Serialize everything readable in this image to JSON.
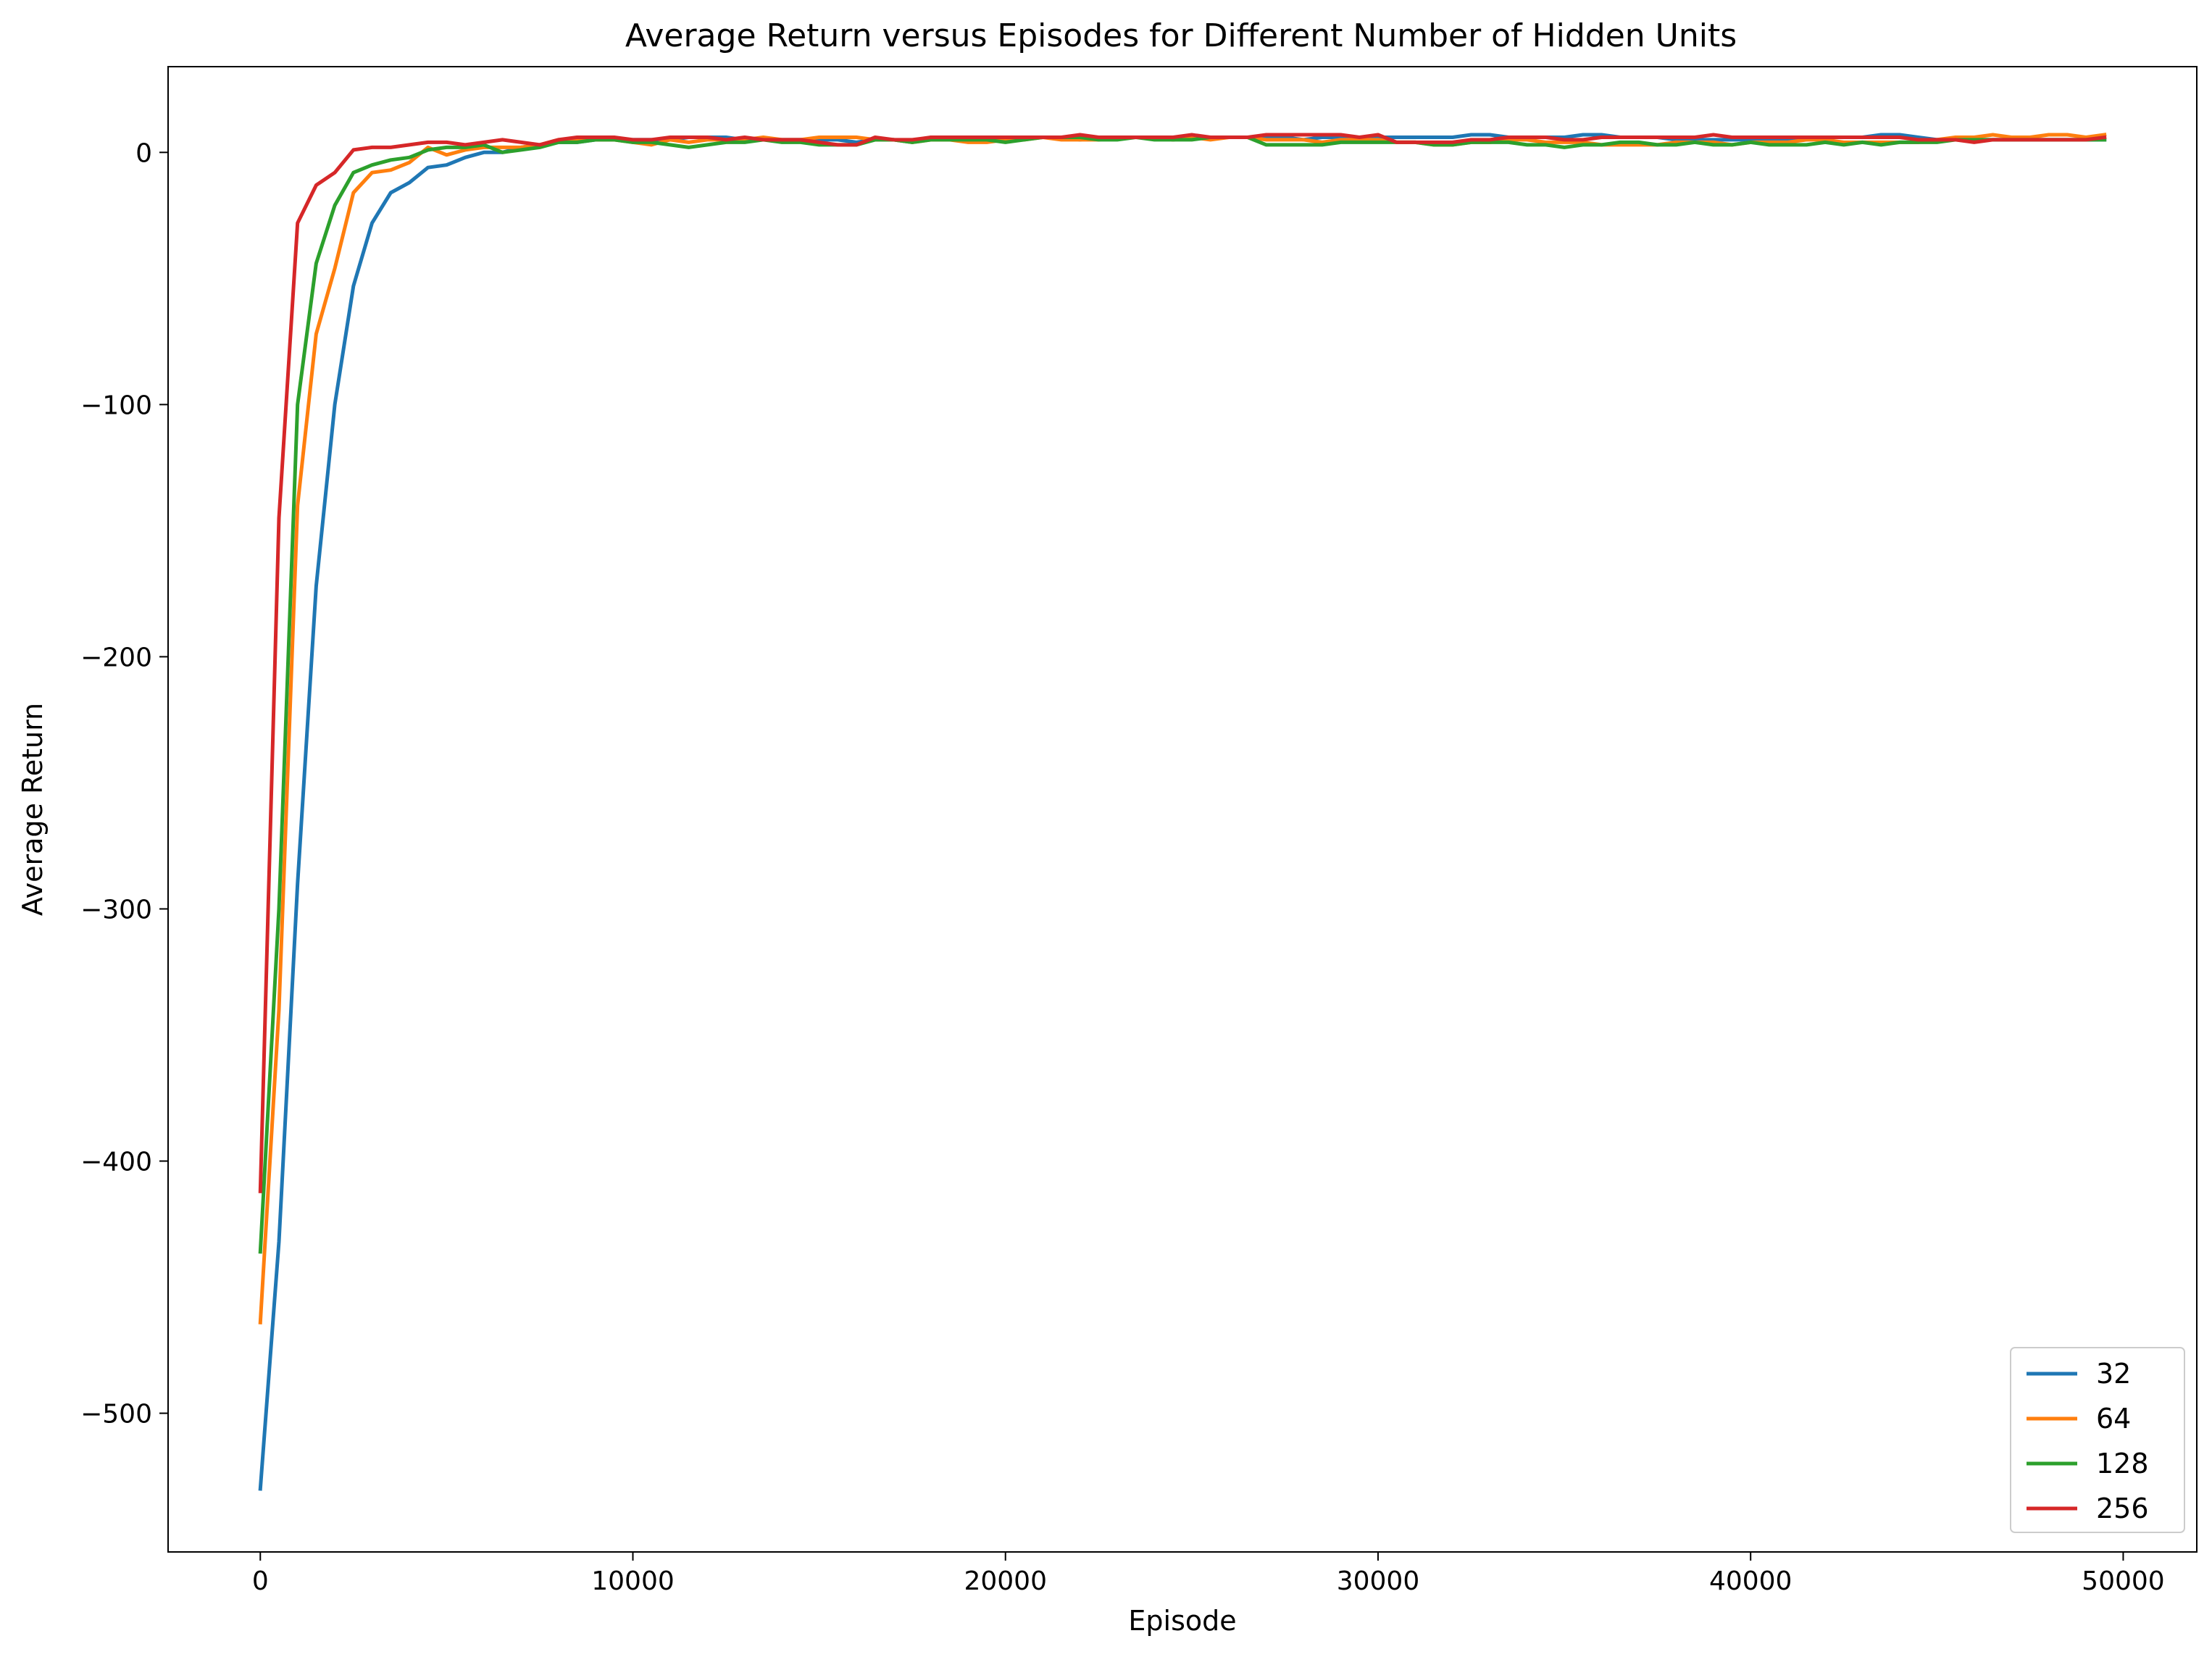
{
  "chart_data": {
    "type": "line",
    "title": "Average Return versus Episodes for Different Number of Hidden Units",
    "xlabel": "Episode",
    "ylabel": "Average Return",
    "xlim": [
      -2475,
      51975
    ],
    "ylim": [
      -555,
      34
    ],
    "xticks": [
      0,
      10000,
      20000,
      30000,
      40000,
      50000
    ],
    "xtick_labels": [
      "0",
      "10000",
      "20000",
      "30000",
      "40000",
      "50000"
    ],
    "yticks": [
      0,
      -100,
      -200,
      -300,
      -400,
      -500
    ],
    "ytick_labels": [
      "0",
      "−100",
      "−200",
      "−300",
      "−400",
      "−500"
    ],
    "grid": false,
    "legend_position": "lower-right",
    "x": [
      0,
      500,
      1000,
      1500,
      2000,
      2500,
      3000,
      3500,
      4000,
      4500,
      5000,
      5500,
      6000,
      6500,
      7000,
      7500,
      8000,
      8500,
      9000,
      9500,
      10000,
      10500,
      11000,
      11500,
      12000,
      12500,
      13000,
      13500,
      14000,
      14500,
      15000,
      15500,
      16000,
      16500,
      17000,
      17500,
      18000,
      18500,
      19000,
      19500,
      20000,
      20500,
      21000,
      21500,
      22000,
      22500,
      23000,
      23500,
      24000,
      24500,
      25000,
      25500,
      26000,
      26500,
      27000,
      27500,
      28000,
      28500,
      29000,
      29500,
      30000,
      30500,
      31000,
      31500,
      32000,
      32500,
      33000,
      33500,
      34000,
      34500,
      35000,
      35500,
      36000,
      36500,
      37000,
      37500,
      38000,
      38500,
      39000,
      39500,
      40000,
      40500,
      41000,
      41500,
      42000,
      42500,
      43000,
      43500,
      44000,
      44500,
      45000,
      45500,
      46000,
      46500,
      47000,
      47500,
      48000,
      48500,
      49000,
      49500
    ],
    "series": [
      {
        "name": "32",
        "color": "#1f77b4",
        "values": [
          -530,
          -432,
          -290,
          -172,
          -100,
          -53,
          -28,
          -16,
          -12,
          -6,
          -5,
          -2,
          0,
          0,
          2,
          3,
          4,
          4,
          5,
          5,
          5,
          5,
          5,
          6,
          6,
          6,
          5,
          5,
          5,
          5,
          5,
          5,
          4,
          5,
          5,
          4,
          6,
          6,
          6,
          6,
          6,
          6,
          6,
          6,
          5,
          6,
          6,
          6,
          6,
          5,
          6,
          6,
          6,
          6,
          6,
          6,
          5,
          6,
          6,
          6,
          6,
          6,
          6,
          6,
          6,
          7,
          7,
          6,
          6,
          6,
          6,
          7,
          7,
          6,
          6,
          6,
          5,
          5,
          5,
          5,
          5,
          5,
          5,
          5,
          6,
          6,
          6,
          7,
          7,
          6,
          5,
          5,
          5,
          5,
          5,
          5,
          5,
          5,
          5,
          5
        ]
      },
      {
        "name": "64",
        "color": "#ff7f0e",
        "values": [
          -464,
          -340,
          -140,
          -72,
          -46,
          -16,
          -8,
          -7,
          -4,
          2,
          -1,
          1,
          2,
          2,
          2,
          3,
          5,
          5,
          5,
          5,
          4,
          3,
          5,
          4,
          5,
          5,
          5,
          6,
          5,
          5,
          6,
          6,
          6,
          5,
          5,
          4,
          5,
          5,
          4,
          4,
          5,
          5,
          6,
          5,
          5,
          5,
          6,
          6,
          6,
          5,
          6,
          5,
          6,
          6,
          5,
          5,
          5,
          4,
          5,
          5,
          5,
          4,
          4,
          3,
          3,
          4,
          4,
          5,
          5,
          4,
          4,
          4,
          3,
          3,
          3,
          3,
          4,
          4,
          4,
          3,
          4,
          4,
          4,
          5,
          5,
          4,
          4,
          4,
          4,
          4,
          5,
          6,
          6,
          7,
          6,
          6,
          7,
          7,
          6,
          7
        ]
      },
      {
        "name": "128",
        "color": "#2ca02c",
        "values": [
          -436,
          -300,
          -100,
          -44,
          -21,
          -8,
          -5,
          -3,
          -2,
          1,
          2,
          2,
          3,
          0,
          1,
          2,
          4,
          4,
          5,
          5,
          4,
          4,
          3,
          2,
          3,
          4,
          4,
          5,
          4,
          4,
          3,
          3,
          3,
          5,
          5,
          4,
          5,
          5,
          5,
          5,
          4,
          5,
          6,
          6,
          6,
          5,
          5,
          6,
          5,
          5,
          5,
          6,
          6,
          6,
          3,
          3,
          3,
          3,
          4,
          4,
          4,
          4,
          4,
          3,
          3,
          4,
          4,
          4,
          3,
          3,
          2,
          3,
          3,
          4,
          4,
          3,
          3,
          4,
          3,
          3,
          4,
          3,
          3,
          3,
          4,
          3,
          4,
          3,
          4,
          4,
          4,
          5,
          5,
          5,
          5,
          5,
          5,
          5,
          5,
          5
        ]
      },
      {
        "name": "256",
        "color": "#d62728",
        "values": [
          -412,
          -145,
          -28,
          -13,
          -8,
          1,
          2,
          2,
          3,
          4,
          4,
          3,
          4,
          5,
          4,
          3,
          5,
          6,
          6,
          6,
          5,
          5,
          6,
          6,
          6,
          5,
          6,
          5,
          5,
          5,
          4,
          3,
          3,
          6,
          5,
          5,
          6,
          6,
          6,
          6,
          6,
          6,
          6,
          6,
          7,
          6,
          6,
          6,
          6,
          6,
          7,
          6,
          6,
          6,
          7,
          7,
          7,
          7,
          7,
          6,
          7,
          4,
          4,
          4,
          4,
          5,
          5,
          6,
          6,
          6,
          5,
          5,
          6,
          6,
          6,
          6,
          6,
          6,
          7,
          6,
          6,
          6,
          6,
          6,
          6,
          6,
          6,
          6,
          6,
          5,
          5,
          5,
          4,
          5,
          5,
          5,
          5,
          5,
          5,
          6
        ]
      }
    ]
  }
}
